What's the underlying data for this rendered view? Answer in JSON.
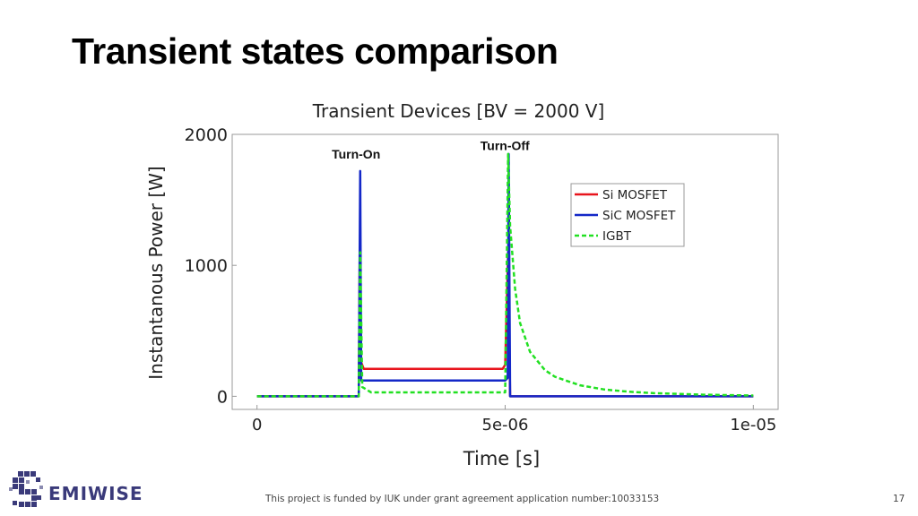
{
  "slide": {
    "title": "Transient states comparison",
    "footer_note": "This project is funded by IUK under grant agreement application number:10033153",
    "page_number": "17",
    "logo_text": "EMIWISE",
    "logo_icon": "semiwise-s-logo-icon"
  },
  "chart_data": {
    "type": "line",
    "title": "Transient Devices [BV = 2000 V]",
    "xlabel": "Time [s]",
    "ylabel": "Instantanous Power [W]",
    "xlim": [
      -5e-07,
      1.05e-05
    ],
    "ylim": [
      -100,
      2000
    ],
    "xticks": [
      0,
      5e-06,
      1e-05
    ],
    "xtick_labels": [
      "0",
      "5e-06",
      "1e-05"
    ],
    "yticks": [
      0,
      1000,
      2000
    ],
    "ytick_labels": [
      "0",
      "1000",
      "2000"
    ],
    "grid": false,
    "legend_position": "top-right",
    "annotations": [
      {
        "text": "Turn-On",
        "x": 2.05e-06,
        "y": 1850
      },
      {
        "text": "Turn-Off",
        "x": 5.05e-06,
        "y": 1915
      }
    ],
    "series": [
      {
        "name": "Si MOSFET",
        "color": "#e8141c",
        "style": "solid",
        "points": [
          [
            0,
            0
          ],
          [
            2.05e-06,
            0
          ],
          [
            2.07e-06,
            1100
          ],
          [
            2.1e-06,
            260
          ],
          [
            2.15e-06,
            210
          ],
          [
            4.95e-06,
            210
          ],
          [
            5e-06,
            240
          ],
          [
            5.06e-06,
            1100
          ],
          [
            5.1e-06,
            0
          ],
          [
            1e-05,
            0
          ]
        ]
      },
      {
        "name": "SiC MOSFET",
        "color": "#1428c8",
        "style": "solid",
        "points": [
          [
            0,
            0
          ],
          [
            2.05e-06,
            0
          ],
          [
            2.08e-06,
            1720
          ],
          [
            2.1e-06,
            120
          ],
          [
            5e-06,
            120
          ],
          [
            5.05e-06,
            140
          ],
          [
            5.07e-06,
            1850
          ],
          [
            5.1e-06,
            0
          ],
          [
            1e-05,
            0
          ]
        ]
      },
      {
        "name": "IGBT",
        "color": "#22e022",
        "style": "dashed",
        "points": [
          [
            0,
            0
          ],
          [
            2.05e-06,
            0
          ],
          [
            2.08e-06,
            1100
          ],
          [
            2.12e-06,
            70
          ],
          [
            2.3e-06,
            30
          ],
          [
            5e-06,
            30
          ],
          [
            5.06e-06,
            1850
          ],
          [
            5.1e-06,
            1300
          ],
          [
            5.2e-06,
            820
          ],
          [
            5.3e-06,
            560
          ],
          [
            5.5e-06,
            340
          ],
          [
            5.8e-06,
            200
          ],
          [
            6e-06,
            150
          ],
          [
            6.5e-06,
            85
          ],
          [
            7e-06,
            52
          ],
          [
            7.5e-06,
            35
          ],
          [
            8e-06,
            24
          ],
          [
            9e-06,
            12
          ],
          [
            1e-05,
            6
          ]
        ]
      }
    ]
  }
}
